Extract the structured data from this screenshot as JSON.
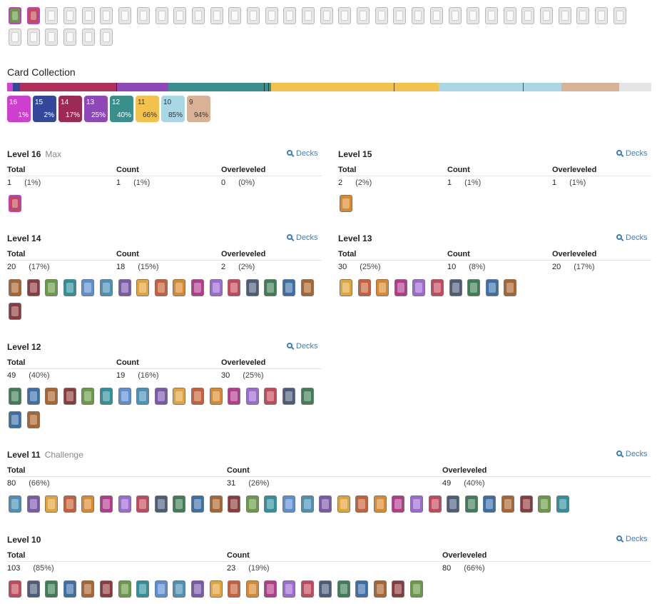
{
  "collection_title": "Card Collection",
  "bar_colors": {
    "16": "#d73fd1",
    "15": "#33489b",
    "14": "#b0305d",
    "13": "#8e48b8",
    "12": "#3a8f8c",
    "11": "#f3c24d",
    "10": "#a9d7e5",
    "9": "#d8b196",
    "rest": "#e4e4e4"
  },
  "chips": [
    {
      "level": "16",
      "pct": "1%",
      "color": "#cf3fcf",
      "light": false
    },
    {
      "level": "15",
      "pct": "2%",
      "color": "#33489b",
      "light": false
    },
    {
      "level": "14",
      "pct": "17%",
      "color": "#9c2a55",
      "light": false
    },
    {
      "level": "13",
      "pct": "25%",
      "color": "#8e48b8",
      "light": false
    },
    {
      "level": "12",
      "pct": "40%",
      "color": "#3a8f8c",
      "light": false
    },
    {
      "level": "11",
      "pct": "66%",
      "color": "#f3c24d",
      "light": true
    },
    {
      "level": "10",
      "pct": "85%",
      "color": "#a9d7e5",
      "light": true
    },
    {
      "level": "9",
      "pct": "94%",
      "color": "#d8b196",
      "light": true
    }
  ],
  "headers": {
    "total": "Total",
    "count": "Count",
    "over": "Overleveled",
    "decks": "Decks"
  },
  "sections": [
    {
      "id": "l16",
      "title": "Level 16",
      "sub": "Max",
      "total": "1",
      "total_pct": "(1%)",
      "count": "1",
      "count_pct": "(1%)",
      "over": "0",
      "over_pct": "(0%)",
      "cards": 1
    },
    {
      "id": "l15",
      "title": "Level 15",
      "sub": "",
      "total": "2",
      "total_pct": "(2%)",
      "count": "1",
      "count_pct": "(1%)",
      "over": "1",
      "over_pct": "(1%)",
      "cards": 1
    },
    {
      "id": "l14",
      "title": "Level 14",
      "sub": "",
      "total": "20",
      "total_pct": "(17%)",
      "count": "18",
      "count_pct": "(15%)",
      "over": "2",
      "over_pct": "(2%)",
      "cards": 18
    },
    {
      "id": "l13",
      "title": "Level 13",
      "sub": "",
      "total": "30",
      "total_pct": "(25%)",
      "count": "10",
      "count_pct": "(8%)",
      "over": "20",
      "over_pct": "(17%)",
      "cards": 10
    },
    {
      "id": "l12",
      "title": "Level 12",
      "sub": "",
      "total": "49",
      "total_pct": "(40%)",
      "count": "19",
      "count_pct": "(16%)",
      "over": "30",
      "over_pct": "(25%)",
      "cards": 19
    },
    {
      "id": "l11",
      "title": "Level 11",
      "sub": "Challenge",
      "total": "80",
      "total_pct": "(66%)",
      "count": "31",
      "count_pct": "(26%)",
      "over": "49",
      "over_pct": "(40%)",
      "cards": 31
    },
    {
      "id": "l10",
      "title": "Level 10",
      "sub": "",
      "total": "103",
      "total_pct": "(85%)",
      "count": "23",
      "count_pct": "(19%)",
      "over": "80",
      "over_pct": "(66%)",
      "cards": 23
    }
  ]
}
